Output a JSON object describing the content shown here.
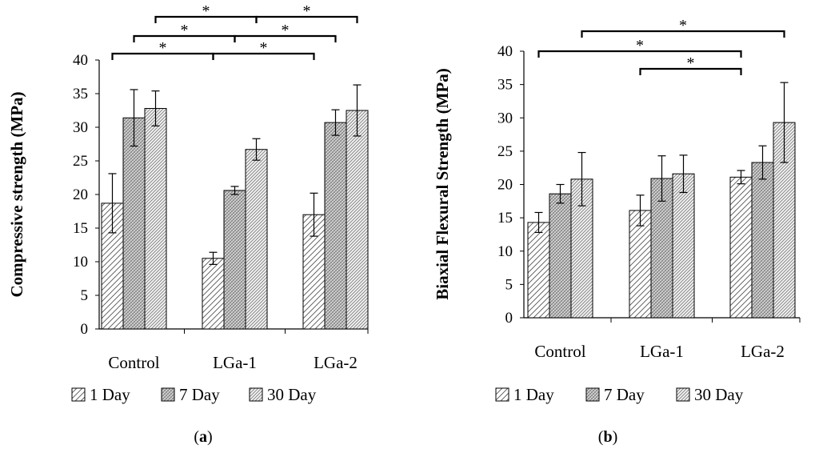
{
  "patterns": {
    "1 Day": "hatch-1",
    "7 Day": "hatch-7",
    "30 Day": "hatch-30"
  },
  "chart_data": [
    {
      "type": "bar",
      "panel": "(a)",
      "panel_letter": "a",
      "ylabel": "Compressive strength (MPa)",
      "ylim": [
        0,
        40
      ],
      "yticks": [
        0,
        5,
        10,
        15,
        20,
        25,
        30,
        35,
        40
      ],
      "categories": [
        "Control",
        "LGa-1",
        "LGa-2"
      ],
      "series": [
        {
          "name": "1 Day",
          "values": [
            18.7,
            10.5,
            17.0
          ],
          "errors": [
            4.4,
            0.9,
            3.2
          ]
        },
        {
          "name": "7 Day",
          "values": [
            31.4,
            20.6,
            30.7
          ],
          "errors": [
            4.2,
            0.6,
            1.9
          ]
        },
        {
          "name": "30 Day",
          "values": [
            32.8,
            26.7,
            32.5
          ],
          "errors": [
            2.6,
            1.6,
            3.8
          ]
        }
      ],
      "significance": [
        {
          "from": [
            0,
            0
          ],
          "to": [
            1,
            0
          ],
          "label": "*",
          "tier": 1
        },
        {
          "from": [
            1,
            0
          ],
          "to": [
            2,
            0
          ],
          "label": "*",
          "tier": 1
        },
        {
          "from": [
            0,
            1
          ],
          "to": [
            1,
            1
          ],
          "label": "*",
          "tier": 2
        },
        {
          "from": [
            1,
            1
          ],
          "to": [
            2,
            1
          ],
          "label": "*",
          "tier": 2
        },
        {
          "from": [
            0,
            2
          ],
          "to": [
            1,
            2
          ],
          "label": "*",
          "tier": 3
        },
        {
          "from": [
            1,
            2
          ],
          "to": [
            2,
            2
          ],
          "label": "*",
          "tier": 3
        }
      ],
      "legend": [
        "1 Day",
        "7 Day",
        "30 Day"
      ]
    },
    {
      "type": "bar",
      "panel": "(b)",
      "panel_letter": "b",
      "ylabel": "Biaxial Flexural Strength (MPa)",
      "ylim": [
        0,
        40
      ],
      "yticks": [
        0,
        5,
        10,
        15,
        20,
        25,
        30,
        35,
        40
      ],
      "categories": [
        "Control",
        "LGa-1",
        "LGa-2"
      ],
      "series": [
        {
          "name": "1 Day",
          "values": [
            14.3,
            16.1,
            21.1
          ],
          "errors": [
            1.5,
            2.3,
            1.0
          ]
        },
        {
          "name": "7 Day",
          "values": [
            18.6,
            20.9,
            23.3
          ],
          "errors": [
            1.4,
            3.4,
            2.5
          ]
        },
        {
          "name": "30 Day",
          "values": [
            20.8,
            21.6,
            29.3
          ],
          "errors": [
            4.0,
            2.8,
            6.0
          ]
        }
      ],
      "significance": [
        {
          "from": [
            0,
            0
          ],
          "to": [
            2,
            0
          ],
          "label": "*",
          "tier": 2
        },
        {
          "from": [
            1,
            0
          ],
          "to": [
            2,
            0
          ],
          "label": "*",
          "tier": 1
        },
        {
          "from": [
            0,
            2
          ],
          "to": [
            2,
            2
          ],
          "label": "*",
          "tier": 3
        }
      ],
      "legend": [
        "1 Day",
        "7 Day",
        "30 Day"
      ]
    }
  ]
}
